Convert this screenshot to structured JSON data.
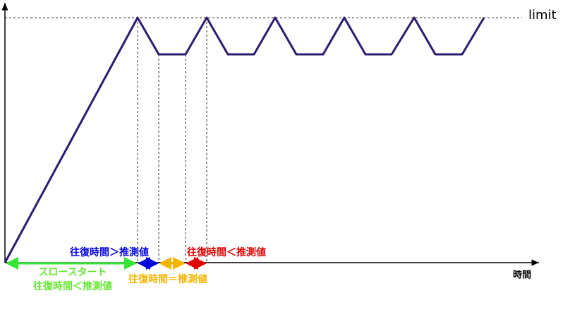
{
  "limit_label": "limit",
  "x_axis_label": "時間",
  "phases": [
    {
      "name": "slow-start",
      "lines": [
        "スロースタート",
        "往復時間＜推測値"
      ]
    },
    {
      "name": "rtt-greater",
      "lines": [
        "往復時間＞推測値"
      ]
    },
    {
      "name": "rtt-equal",
      "lines": [
        "往復時間＝推測値"
      ]
    },
    {
      "name": "rtt-less",
      "lines": [
        "往復時間＜推測値"
      ]
    }
  ]
}
